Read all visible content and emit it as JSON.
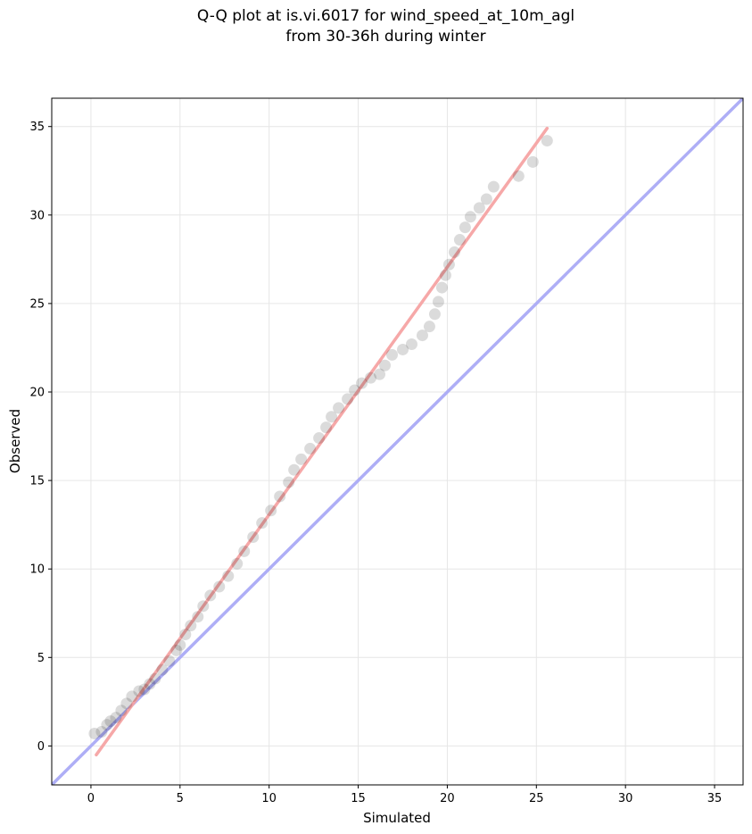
{
  "chart_data": {
    "type": "scatter",
    "title": "Q-Q plot at is.vi.6017 for wind_speed_at_10m_agl",
    "subtitle": "from 30-36h during winter",
    "xlabel": "Simulated",
    "ylabel": "Observed",
    "xlim": [
      -2.2,
      36.6
    ],
    "ylim": [
      -2.2,
      36.6
    ],
    "xticks": [
      0,
      5,
      10,
      15,
      20,
      25,
      30,
      35
    ],
    "yticks": [
      0,
      5,
      10,
      15,
      20,
      25,
      30,
      35
    ],
    "xtick_labels": [
      "0",
      "5",
      "10",
      "15",
      "20",
      "25",
      "30",
      "35"
    ],
    "ytick_labels": [
      "0",
      "5",
      "10",
      "15",
      "20",
      "25",
      "30",
      "35"
    ],
    "grid": true,
    "series": [
      {
        "kind": "quantile-points",
        "color": "#000000",
        "points": [
          [
            0.2,
            0.7
          ],
          [
            0.6,
            0.8
          ],
          [
            0.9,
            1.2
          ],
          [
            1.1,
            1.4
          ],
          [
            1.4,
            1.6
          ],
          [
            1.7,
            2.0
          ],
          [
            2.0,
            2.4
          ],
          [
            2.3,
            2.8
          ],
          [
            2.7,
            3.1
          ],
          [
            3.0,
            3.2
          ],
          [
            3.3,
            3.5
          ],
          [
            3.6,
            3.8
          ],
          [
            4.0,
            4.3
          ],
          [
            4.4,
            4.8
          ],
          [
            4.8,
            5.4
          ],
          [
            5.0,
            5.7
          ],
          [
            5.3,
            6.3
          ],
          [
            5.6,
            6.8
          ],
          [
            6.0,
            7.3
          ],
          [
            6.3,
            7.9
          ],
          [
            6.7,
            8.5
          ],
          [
            7.2,
            9.0
          ],
          [
            7.7,
            9.6
          ],
          [
            8.2,
            10.3
          ],
          [
            8.6,
            11.0
          ],
          [
            9.1,
            11.8
          ],
          [
            9.6,
            12.6
          ],
          [
            10.1,
            13.3
          ],
          [
            10.6,
            14.1
          ],
          [
            11.1,
            14.9
          ],
          [
            11.4,
            15.6
          ],
          [
            11.8,
            16.2
          ],
          [
            12.3,
            16.8
          ],
          [
            12.8,
            17.4
          ],
          [
            13.2,
            18.0
          ],
          [
            13.5,
            18.6
          ],
          [
            13.9,
            19.1
          ],
          [
            14.4,
            19.6
          ],
          [
            14.8,
            20.1
          ],
          [
            15.2,
            20.5
          ],
          [
            15.7,
            20.8
          ],
          [
            16.2,
            21.0
          ],
          [
            16.5,
            21.5
          ],
          [
            16.9,
            22.1
          ],
          [
            17.5,
            22.4
          ],
          [
            18.0,
            22.7
          ],
          [
            18.6,
            23.2
          ],
          [
            19.0,
            23.7
          ],
          [
            19.3,
            24.4
          ],
          [
            19.5,
            25.1
          ],
          [
            19.7,
            25.9
          ],
          [
            19.9,
            26.6
          ],
          [
            20.1,
            27.2
          ],
          [
            20.4,
            27.9
          ],
          [
            20.7,
            28.6
          ],
          [
            21.0,
            29.3
          ],
          [
            21.3,
            29.9
          ],
          [
            21.8,
            30.4
          ],
          [
            22.2,
            30.9
          ],
          [
            22.6,
            31.6
          ],
          [
            24.0,
            32.2
          ],
          [
            24.8,
            33.0
          ],
          [
            25.6,
            34.2
          ]
        ]
      },
      {
        "kind": "1:1 reference line",
        "color": "#aaaaf5",
        "points": [
          [
            -2.2,
            -2.2
          ],
          [
            36.6,
            36.6
          ]
        ]
      },
      {
        "kind": "fit line",
        "color": "#f5a3a3",
        "points": [
          [
            0.3,
            -0.5
          ],
          [
            25.6,
            34.9
          ]
        ]
      }
    ]
  }
}
